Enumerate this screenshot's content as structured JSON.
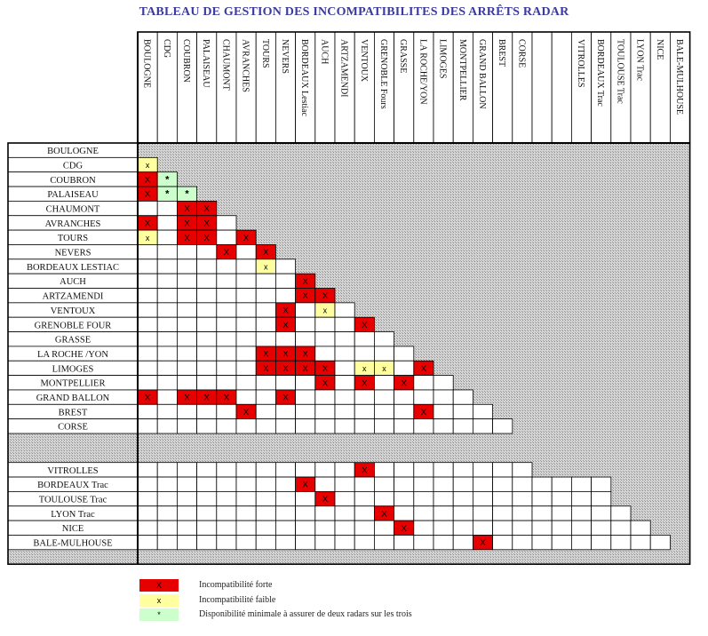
{
  "title": "TABLEAU DE GESTION DES INCOMPATIBILITES DES ARRÊTS RADAR",
  "colors": {
    "strong": "#e60000",
    "weak": "#ffffa0",
    "star": "#ccffcc",
    "hatch": "#c8c8c8",
    "line": "#000000"
  },
  "columns": [
    "BOULOGNE",
    "CDG",
    "COUBRON",
    "PALAISEAU",
    "CHAUMONT",
    "AVRANCHES",
    "TOURS",
    "NEVERS",
    "BORDEAUX Lestiac",
    "AUCH",
    "ARTZAMENDI",
    "VENTOUX",
    "GRENOBLE Fours",
    "GRASSE",
    "LA ROCHE/YON",
    "LIMOGES",
    "MONTPELLIER",
    "GRAND BALLON",
    "BREST",
    "CORSE",
    "",
    "",
    "VITROLLES",
    "BORDEAUX Trac",
    "TOULOUSE Trac",
    "LYON Trac",
    "NICE",
    "BALE-MULHOUSE"
  ],
  "rows": [
    {
      "label": "BOULOGNE",
      "cells": []
    },
    {
      "label": "CDG",
      "cells": [
        "x"
      ]
    },
    {
      "label": "COUBRON",
      "cells": [
        "X",
        "*"
      ]
    },
    {
      "label": "PALAISEAU",
      "cells": [
        "X",
        "*",
        "*"
      ]
    },
    {
      "label": "CHAUMONT",
      "cells": [
        "",
        "",
        "X",
        "X"
      ]
    },
    {
      "label": "AVRANCHES",
      "cells": [
        "X",
        "",
        "X",
        "X",
        ""
      ]
    },
    {
      "label": "TOURS",
      "cells": [
        "x",
        "",
        "X",
        "X",
        "",
        "X"
      ]
    },
    {
      "label": "NEVERS",
      "cells": [
        "",
        "",
        "",
        "",
        "X",
        "",
        "X"
      ]
    },
    {
      "label": "BORDEAUX LESTIAC",
      "cells": [
        "",
        "",
        "",
        "",
        "",
        "",
        "x",
        ""
      ]
    },
    {
      "label": "AUCH",
      "cells": [
        "",
        "",
        "",
        "",
        "",
        "",
        "",
        "",
        "X"
      ]
    },
    {
      "label": "ARTZAMENDI",
      "cells": [
        "",
        "",
        "",
        "",
        "",
        "",
        "",
        "",
        "X",
        "X"
      ]
    },
    {
      "label": "VENTOUX",
      "cells": [
        "",
        "",
        "",
        "",
        "",
        "",
        "",
        "X",
        "",
        "x",
        ""
      ]
    },
    {
      "label": "GRENOBLE FOUR",
      "cells": [
        "",
        "",
        "",
        "",
        "",
        "",
        "",
        "X",
        "",
        "",
        "",
        "X"
      ]
    },
    {
      "label": "GRASSE",
      "cells": [
        "",
        "",
        "",
        "",
        "",
        "",
        "",
        "",
        "",
        "",
        "",
        "",
        ""
      ]
    },
    {
      "label": "LA ROCHE /YON",
      "cells": [
        "",
        "",
        "",
        "",
        "",
        "",
        "X",
        "X",
        "X",
        "",
        "",
        "",
        "",
        ""
      ]
    },
    {
      "label": "LIMOGES",
      "cells": [
        "",
        "",
        "",
        "",
        "",
        "",
        "X",
        "X",
        "X",
        "X",
        "",
        "x",
        "x",
        "",
        "X"
      ]
    },
    {
      "label": "MONTPELLIER",
      "cells": [
        "",
        "",
        "",
        "",
        "",
        "",
        "",
        "",
        "",
        "X",
        "",
        "X",
        "",
        "X",
        "",
        ""
      ]
    },
    {
      "label": "GRAND BALLON",
      "cells": [
        "X",
        "",
        "X",
        "X",
        "X",
        "",
        "",
        "X",
        "",
        "",
        "",
        "",
        "",
        "",
        "",
        "",
        ""
      ]
    },
    {
      "label": "BREST",
      "cells": [
        "",
        "",
        "",
        "",
        "",
        "X",
        "",
        "",
        "",
        "",
        "",
        "",
        "",
        "",
        "X",
        "",
        "",
        ""
      ]
    },
    {
      "label": "CORSE",
      "cells": [
        "",
        "",
        "",
        "",
        "",
        "",
        "",
        "",
        "",
        "",
        "",
        "",
        "",
        "",
        "",
        "",
        "",
        "",
        ""
      ]
    },
    {
      "label": "",
      "cells": []
    },
    {
      "label": "",
      "cells": []
    },
    {
      "label": "VITROLLES",
      "cells": [
        "",
        "",
        "",
        "",
        "",
        "",
        "",
        "",
        "",
        "",
        "",
        "X",
        "",
        "",
        "",
        "",
        "",
        "",
        "",
        ""
      ]
    },
    {
      "label": "BORDEAUX Trac",
      "cells": [
        "",
        "",
        "",
        "",
        "",
        "",
        "",
        "",
        "X",
        "",
        "",
        "",
        "",
        "",
        "",
        "",
        "",
        "",
        "",
        "",
        "",
        "",
        "",
        ""
      ]
    },
    {
      "label": "TOULOUSE Trac",
      "cells": [
        "",
        "",
        "",
        "",
        "",
        "",
        "",
        "",
        "",
        "X",
        "",
        "",
        "",
        "",
        "",
        "",
        "",
        "",
        "",
        "",
        "",
        "",
        "",
        ""
      ]
    },
    {
      "label": "LYON Trac",
      "cells": [
        "",
        "",
        "",
        "",
        "",
        "",
        "",
        "",
        "",
        "",
        "",
        "",
        "X",
        "",
        "",
        "",
        "",
        "",
        "",
        "",
        "",
        "",
        "",
        "",
        ""
      ]
    },
    {
      "label": "NICE",
      "cells": [
        "",
        "",
        "",
        "",
        "",
        "",
        "",
        "",
        "",
        "",
        "",
        "",
        "",
        "X",
        "",
        "",
        "",
        "",
        "",
        "",
        "",
        "",
        "",
        "",
        "",
        ""
      ]
    },
    {
      "label": "BALE-MULHOUSE",
      "cells": [
        "",
        "",
        "",
        "",
        "",
        "",
        "",
        "",
        "",
        "",
        "",
        "",
        "",
        "",
        "",
        "",
        "",
        "X",
        "",
        "",
        "",
        "",
        "",
        "",
        "",
        "",
        ""
      ]
    },
    {
      "label": "",
      "cells": []
    }
  ],
  "legend": [
    {
      "symbol": "X",
      "kind": "strong",
      "text": "Incompatibilité forte"
    },
    {
      "symbol": "x",
      "kind": "weak",
      "text": "Incompatibilité faible"
    },
    {
      "symbol": "*",
      "kind": "star",
      "text": "Disponibilité minimale à assurer de deux radars sur les trois"
    }
  ]
}
